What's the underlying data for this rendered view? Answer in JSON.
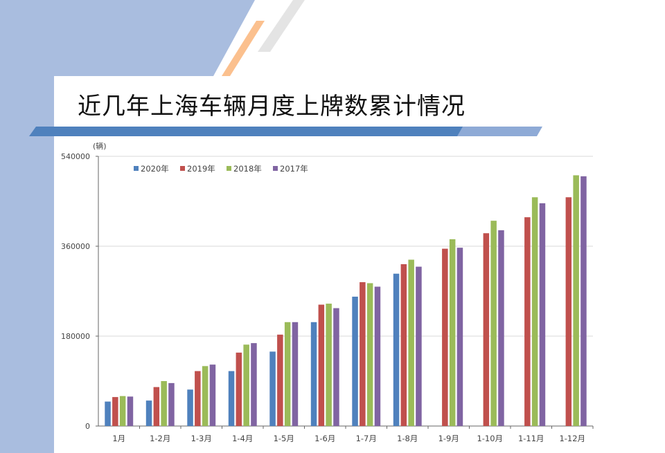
{
  "page": {
    "title": "近几年上海车辆月度上牌数累计情况"
  },
  "chart_data": {
    "type": "bar",
    "title": "",
    "xlabel": "",
    "ylabel": "(辆)",
    "ylim": [
      0,
      540000
    ],
    "yticks": [
      0,
      180000,
      360000,
      540000
    ],
    "ytick_labels": [
      "0",
      "180000",
      "360000",
      "540000"
    ],
    "grid": true,
    "legend_position": "top-left",
    "categories": [
      "1月",
      "1-2月",
      "1-3月",
      "1-4月",
      "1-5月",
      "1-6月",
      "1-7月",
      "1-8月",
      "1-9月",
      "1-10月",
      "1-11月",
      "1-12月"
    ],
    "series": [
      {
        "name": "2020年",
        "color": "#4f81bd",
        "values": [
          49000,
          51000,
          73000,
          110000,
          149000,
          208000,
          259000,
          305000,
          null,
          null,
          null,
          null
        ]
      },
      {
        "name": "2019年",
        "color": "#c0504d",
        "values": [
          58000,
          78000,
          110000,
          147000,
          183000,
          243000,
          288000,
          324000,
          355000,
          386000,
          418000,
          458000
        ]
      },
      {
        "name": "2018年",
        "color": "#9bbb59",
        "values": [
          60000,
          90000,
          120000,
          163000,
          208000,
          245000,
          286000,
          333000,
          374000,
          411000,
          458000,
          502000
        ]
      },
      {
        "name": "2017年",
        "color": "#8064a2",
        "values": [
          59000,
          86000,
          123000,
          166000,
          208000,
          236000,
          279000,
          319000,
          357000,
          392000,
          446000,
          500000
        ]
      }
    ]
  }
}
